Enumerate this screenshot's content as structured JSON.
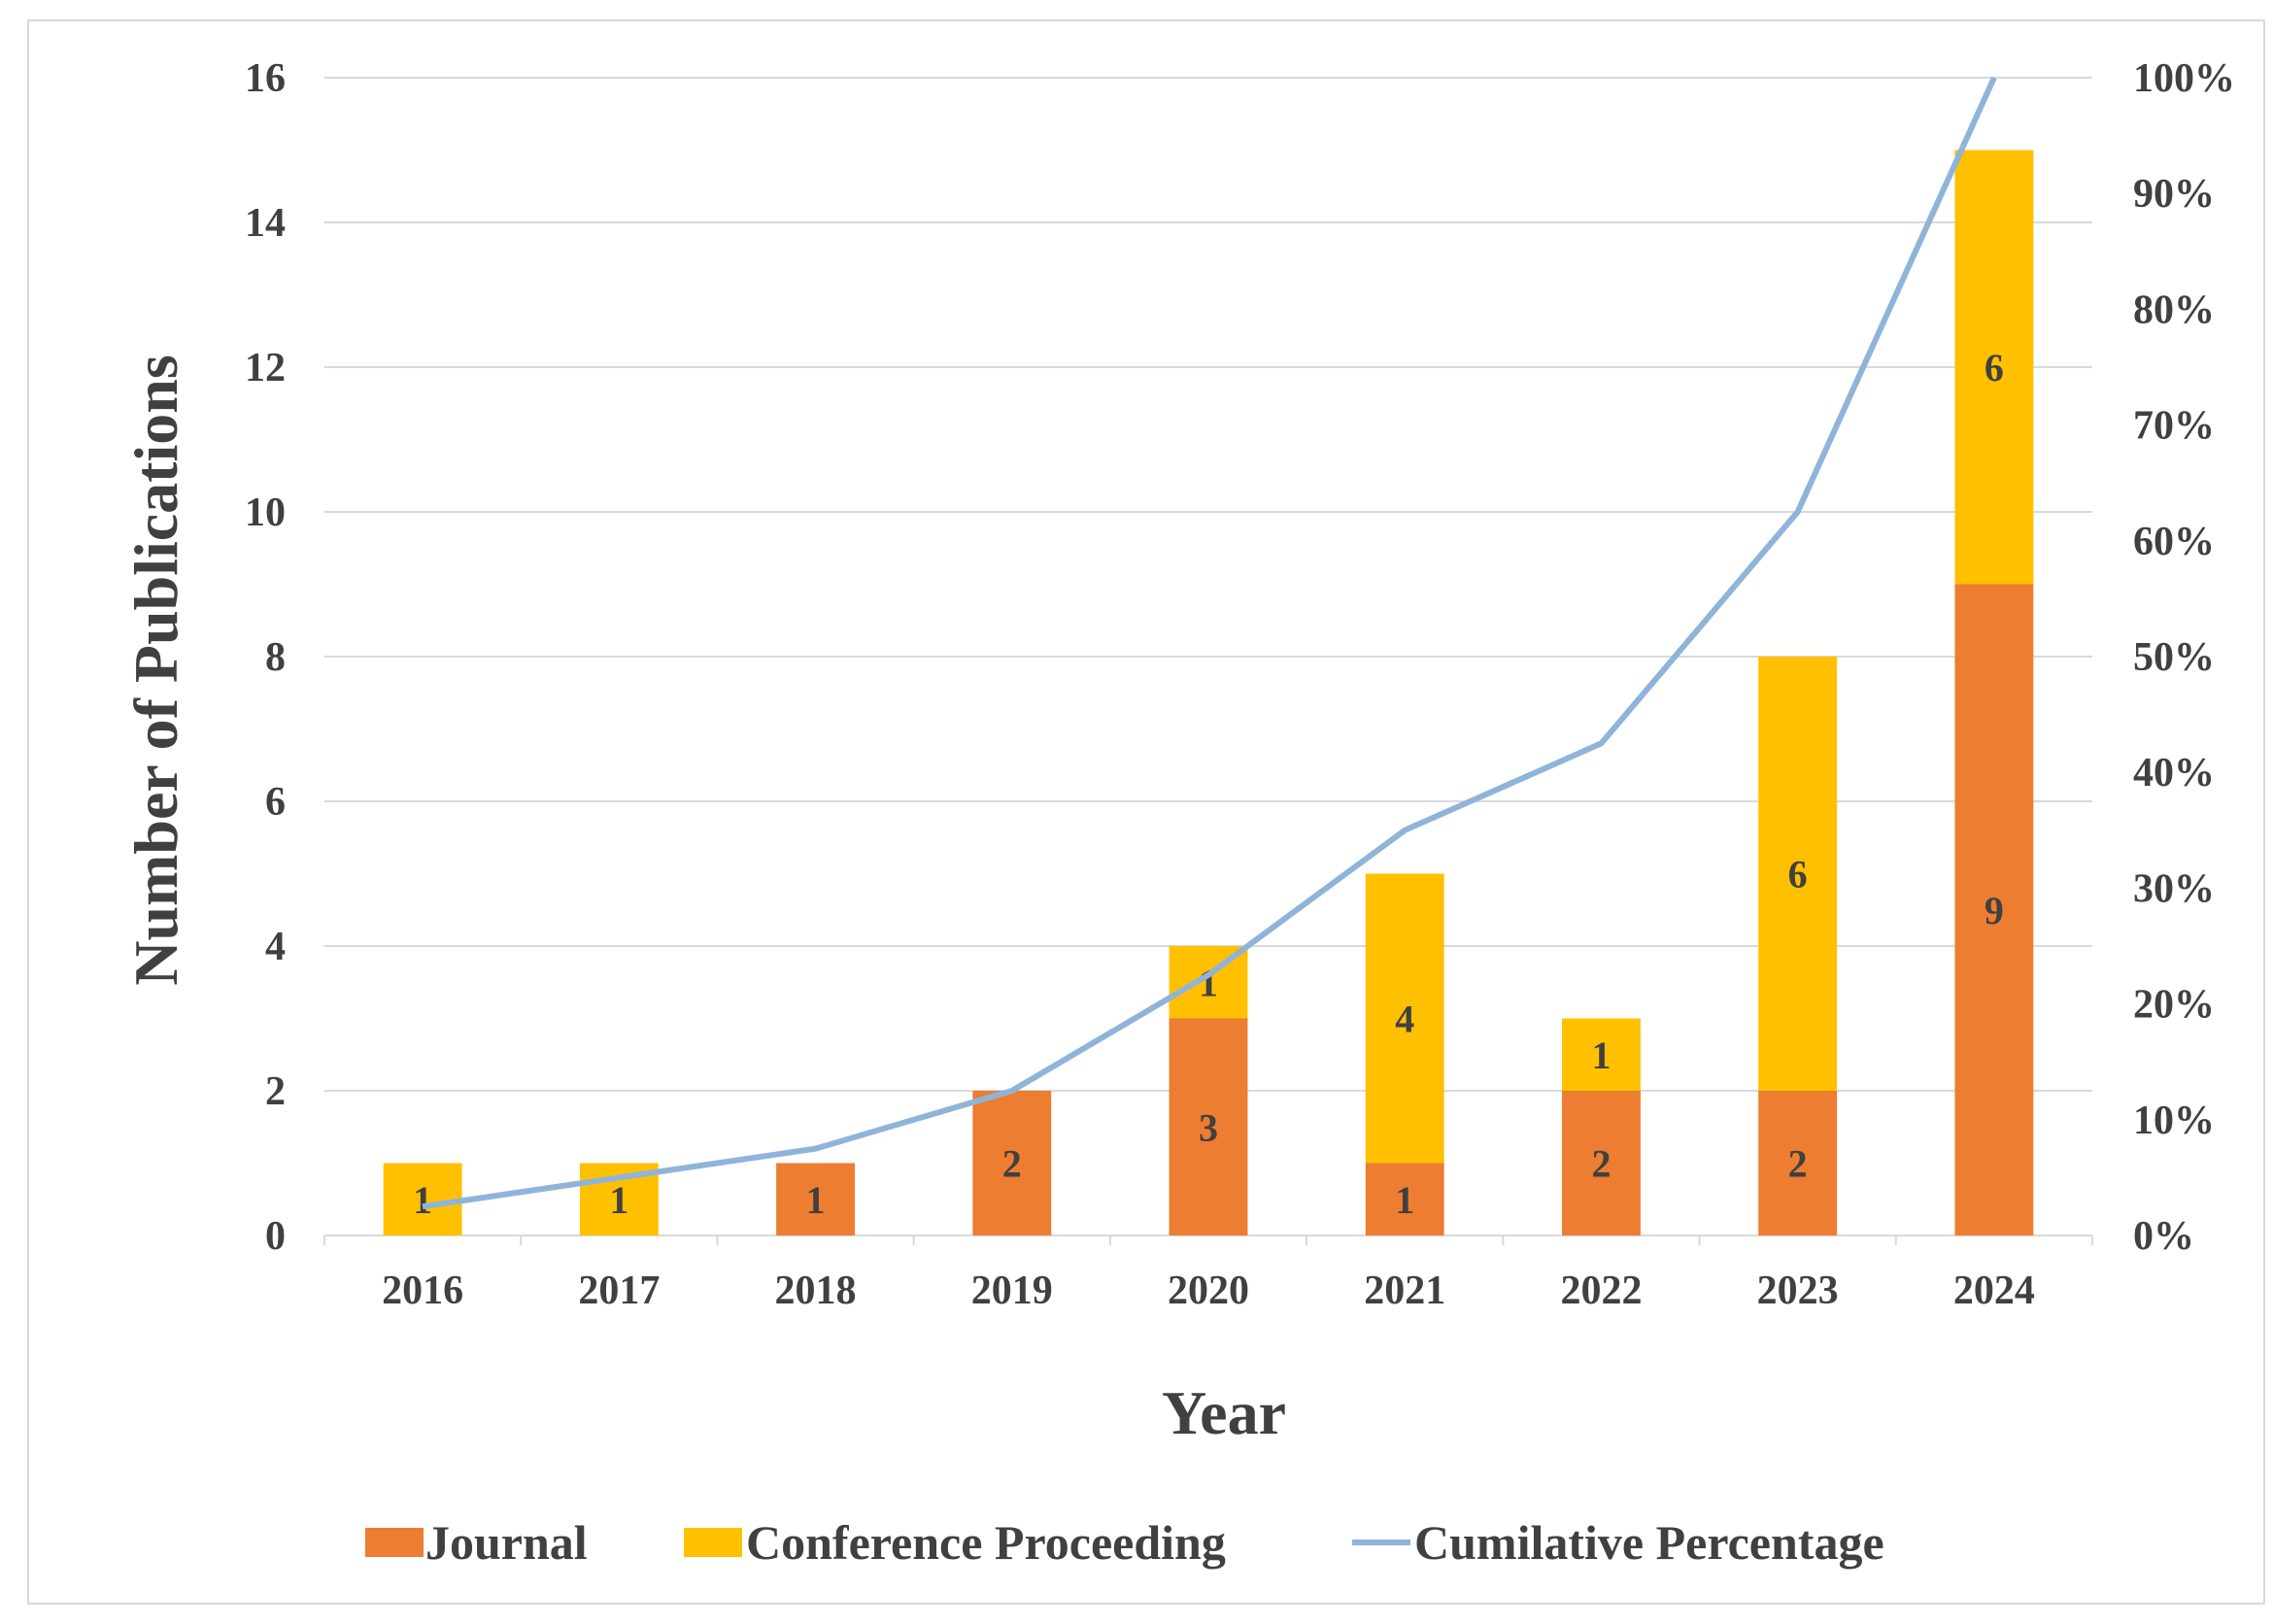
{
  "chart_data": {
    "type": "bar",
    "stacked": true,
    "title": "",
    "xlabel": "Year",
    "ylabel": "Number of Publications",
    "categories": [
      "2016",
      "2017",
      "2018",
      "2019",
      "2020",
      "2021",
      "2022",
      "2023",
      "2024"
    ],
    "series": [
      {
        "name": "Journal",
        "type": "bar",
        "axis": "left",
        "color": "#ED7D31",
        "values": [
          0,
          0,
          1,
          2,
          3,
          1,
          2,
          2,
          9
        ],
        "data_labels": [
          "",
          "",
          "1",
          "2",
          "3",
          "1",
          "2",
          "2",
          "9"
        ]
      },
      {
        "name": "Conference Proceeding",
        "type": "bar",
        "axis": "left",
        "color": "#FFC000",
        "values": [
          1,
          1,
          0,
          0,
          1,
          4,
          1,
          6,
          6
        ],
        "data_labels": [
          "1",
          "1",
          "",
          "",
          "1",
          "4",
          "1",
          "6",
          "6"
        ]
      },
      {
        "name": "Cumilative Percentage",
        "type": "line",
        "axis": "right",
        "color": "#8FB4D9",
        "values": [
          2.5,
          5.0,
          7.5,
          12.5,
          22.5,
          35.0,
          42.5,
          62.5,
          100.0
        ]
      }
    ],
    "ylim": [
      0,
      16
    ],
    "yticks": [
      "0",
      "2",
      "4",
      "6",
      "8",
      "10",
      "12",
      "14",
      "16"
    ],
    "y2lim": [
      0,
      100
    ],
    "y2ticks": [
      "0%",
      "10%",
      "20%",
      "30%",
      "40%",
      "50%",
      "60%",
      "70%",
      "80%",
      "90%",
      "100%"
    ],
    "grid": true,
    "gridline_color": "#d9d9d9",
    "legend_position": "bottom"
  }
}
